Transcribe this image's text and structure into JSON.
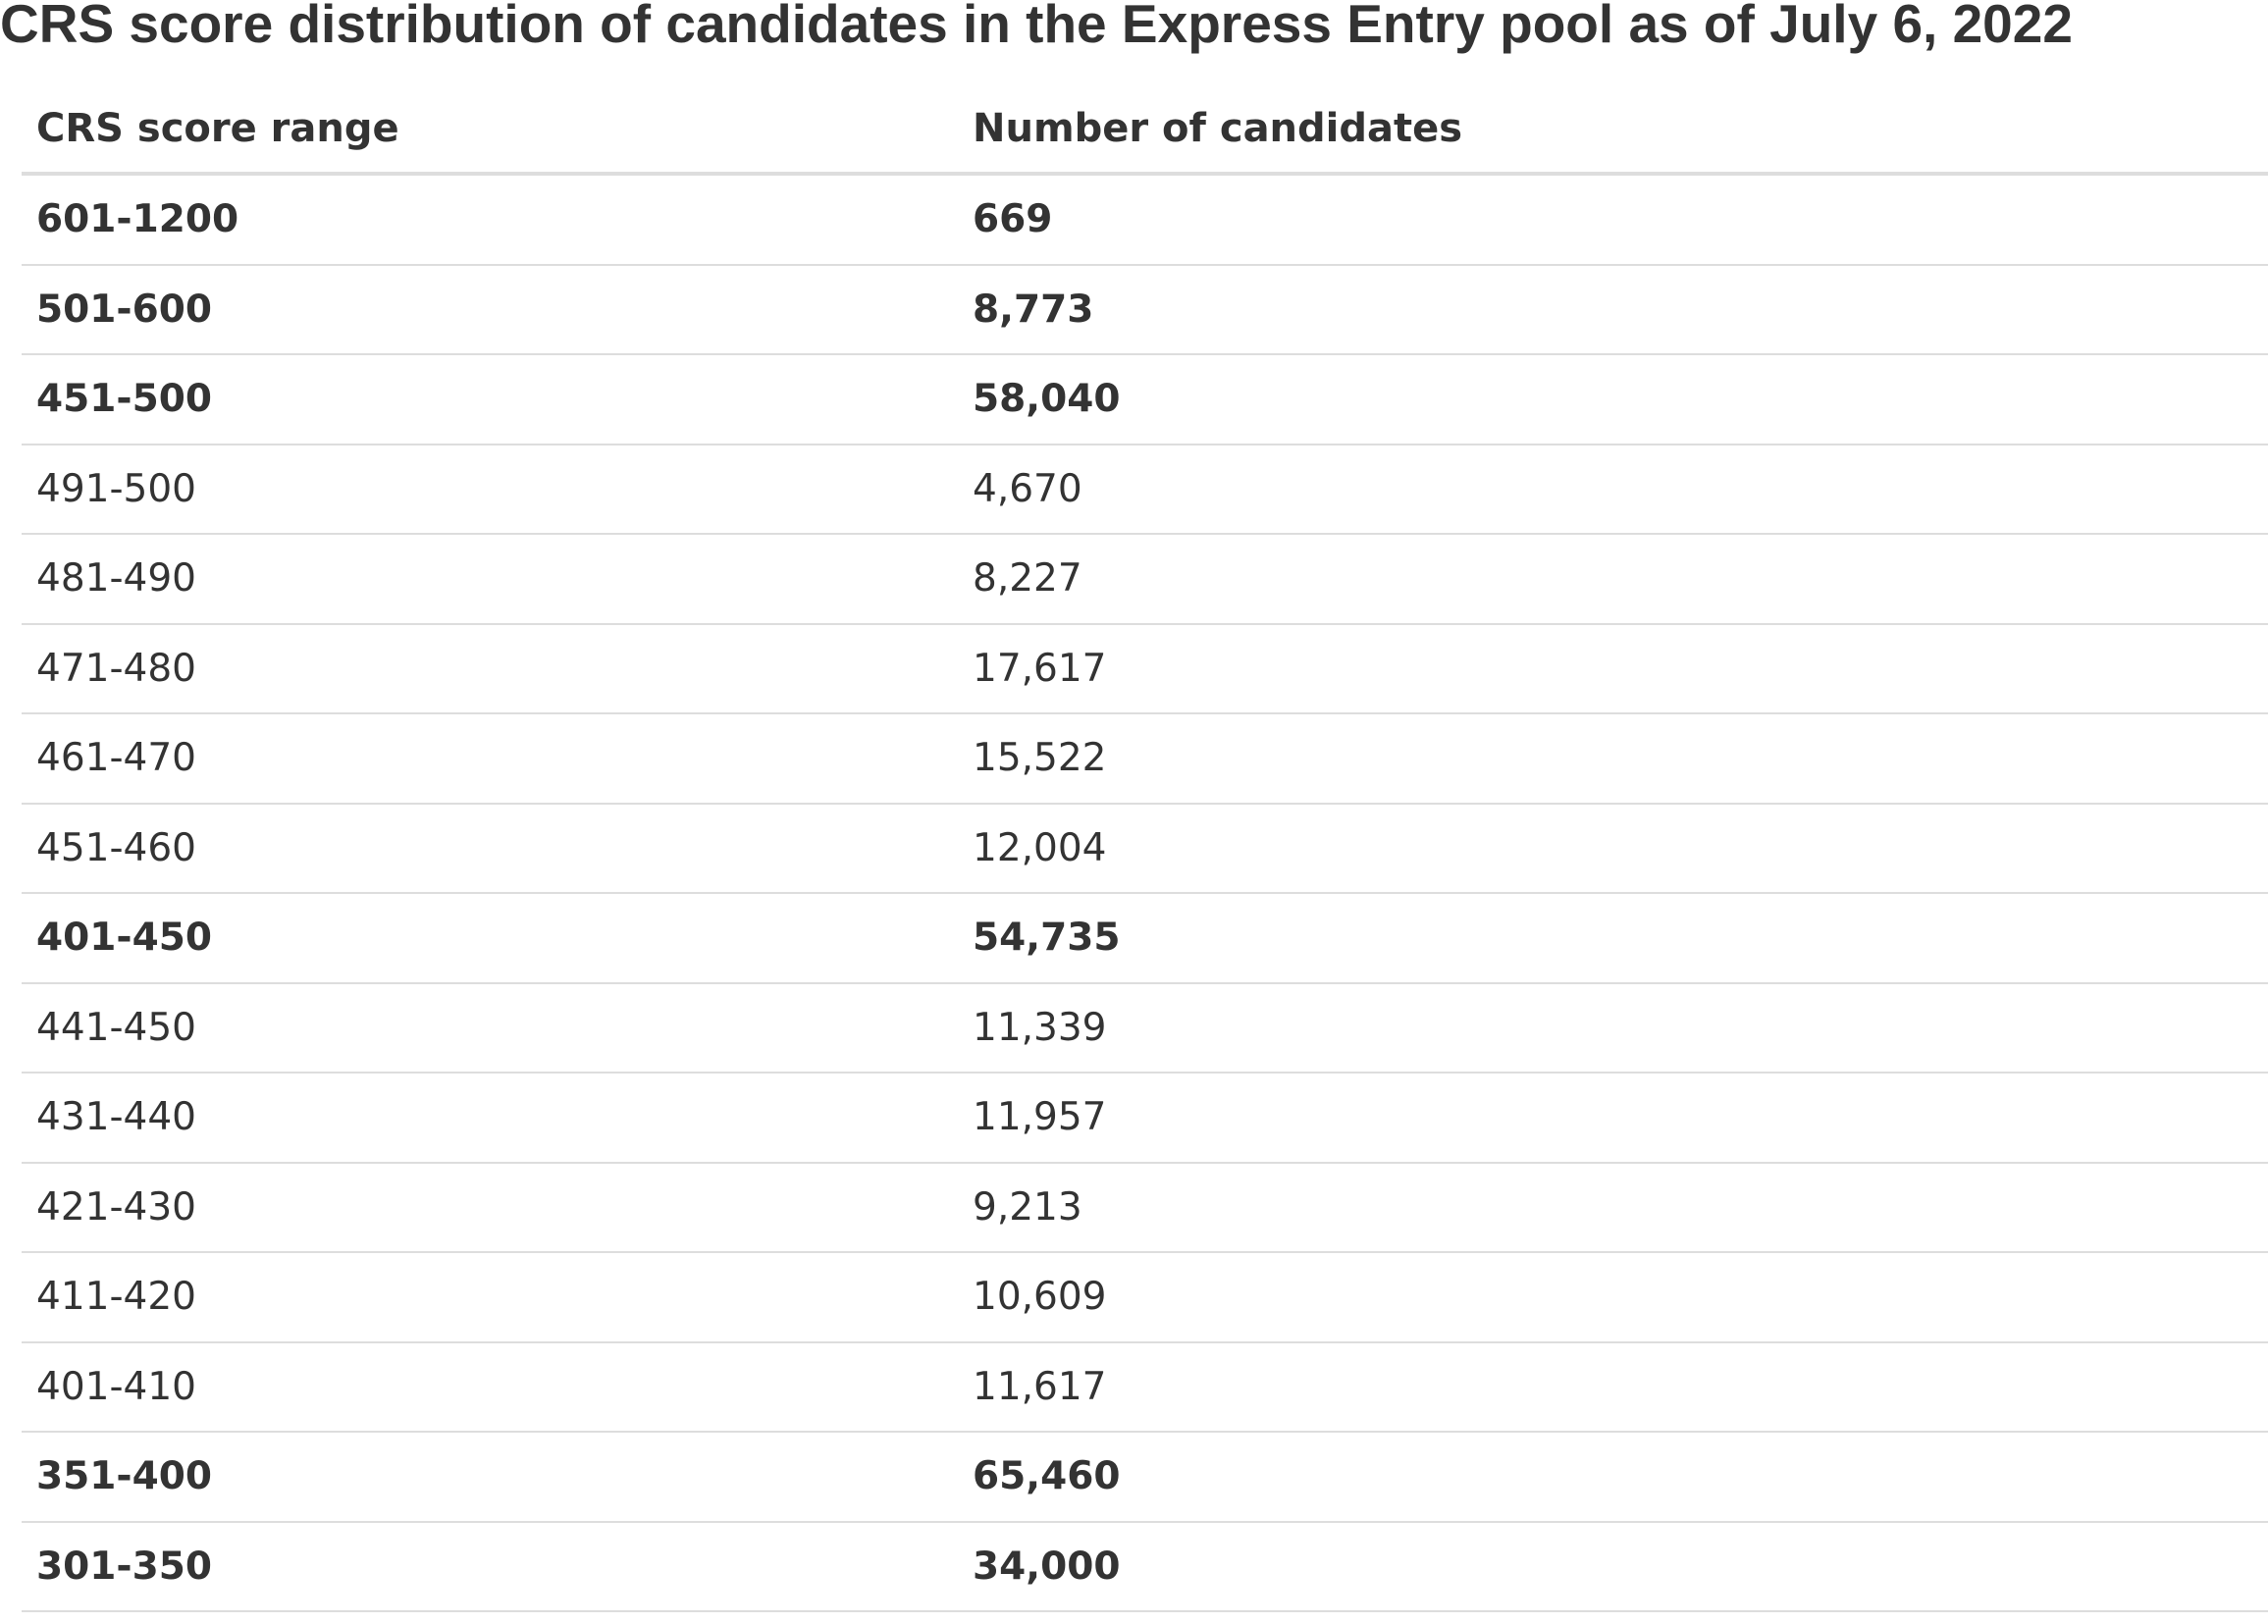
{
  "title": "CRS score distribution of candidates in the Express Entry pool as of July 6, 2022",
  "table": {
    "headers": {
      "range": "CRS score range",
      "count": "Number of candidates"
    },
    "rows": [
      {
        "range": "601-1200",
        "count": "669",
        "bold": true
      },
      {
        "range": "501-600",
        "count": "8,773",
        "bold": true
      },
      {
        "range": "451-500",
        "count": "58,040",
        "bold": true
      },
      {
        "range": "491-500",
        "count": "4,670",
        "bold": false
      },
      {
        "range": "481-490",
        "count": "8,227",
        "bold": false
      },
      {
        "range": "471-480",
        "count": "17,617",
        "bold": false
      },
      {
        "range": "461-470",
        "count": "15,522",
        "bold": false
      },
      {
        "range": "451-460",
        "count": "12,004",
        "bold": false
      },
      {
        "range": "401-450",
        "count": "54,735",
        "bold": true
      },
      {
        "range": "441-450",
        "count": "11,339",
        "bold": false
      },
      {
        "range": "431-440",
        "count": "11,957",
        "bold": false
      },
      {
        "range": "421-430",
        "count": "9,213",
        "bold": false
      },
      {
        "range": "411-420",
        "count": "10,609",
        "bold": false
      },
      {
        "range": "401-410",
        "count": "11,617",
        "bold": false
      },
      {
        "range": "351-400",
        "count": "65,460",
        "bold": true
      },
      {
        "range": "301-350",
        "count": "34,000",
        "bold": true
      }
    ]
  }
}
